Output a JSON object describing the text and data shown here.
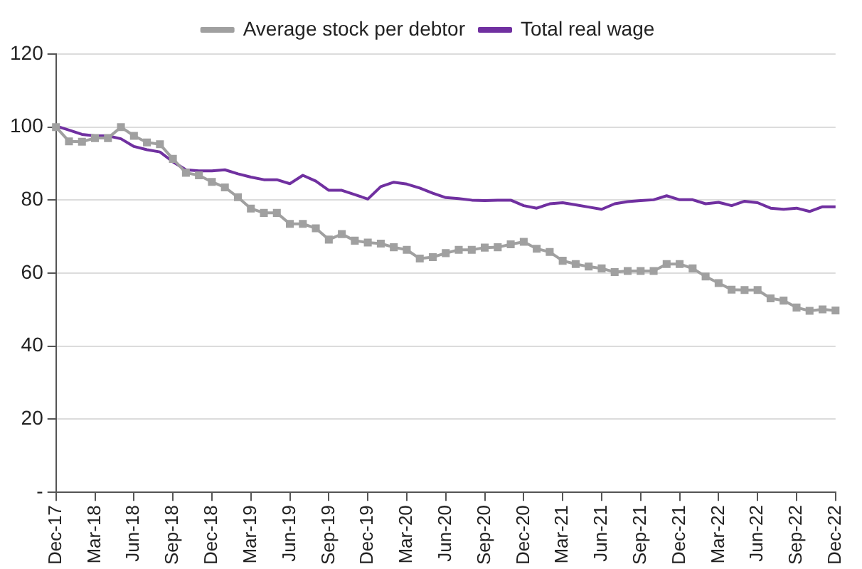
{
  "chart_data": {
    "type": "line",
    "categories": [
      "Dec-17",
      null,
      null,
      "Mar-18",
      null,
      null,
      "Jun-18",
      null,
      null,
      "Sep-18",
      null,
      null,
      "Dec-18",
      null,
      null,
      "Mar-19",
      null,
      null,
      "Jun-19",
      null,
      null,
      "Sep-19",
      null,
      null,
      "Dec-19",
      null,
      null,
      "Mar-20",
      null,
      null,
      "Jun-20",
      null,
      null,
      "Sep-20",
      null,
      null,
      "Dec-20",
      null,
      null,
      "Mar-21",
      null,
      null,
      "Jun-21",
      null,
      null,
      "Sep-21",
      null,
      null,
      "Dec-21",
      null,
      null,
      "Mar-22",
      null,
      null,
      "Jun-22",
      null,
      null,
      "Sep-22",
      null,
      null,
      "Dec-22"
    ],
    "series": [
      {
        "name": "Average stock per debtor",
        "color": "#a0a0a0",
        "marker": "square",
        "values": [
          100,
          96.1,
          96,
          97,
          97,
          100,
          97.6,
          95.8,
          95.3,
          91.3,
          87.5,
          86.8,
          85,
          83.5,
          80.8,
          77.7,
          76.5,
          76.5,
          73.5,
          73.5,
          72.3,
          69.2,
          70.7,
          68.9,
          68.4,
          68.1,
          67.1,
          66.4,
          64,
          64.4,
          65.5,
          66.4,
          66.4,
          67,
          67.1,
          67.9,
          68.6,
          66.7,
          65.8,
          63.4,
          62.5,
          61.8,
          61.3,
          60.3,
          60.6,
          60.6,
          60.6,
          62.5,
          62.5,
          61.3,
          59.1,
          57.3,
          55.5,
          55.4,
          55.4,
          53.1,
          52.5,
          50.6,
          49.7,
          50.1,
          49.8
        ]
      },
      {
        "name": "Total real wage",
        "color": "#7030a0",
        "marker": "none",
        "values": [
          100.3,
          99.2,
          98,
          97.6,
          97.6,
          96.8,
          94.7,
          93.8,
          93.2,
          90.5,
          88.3,
          88,
          88,
          88.3,
          87.2,
          86.3,
          85.6,
          85.6,
          84.5,
          86.8,
          85.2,
          82.7,
          82.7,
          81.5,
          80.3,
          83.7,
          84.9,
          84.4,
          83.3,
          81.9,
          80.7,
          80.4,
          80,
          79.9,
          80,
          80,
          78.5,
          77.8,
          79,
          79.3,
          78.7,
          78.1,
          77.5,
          79,
          79.6,
          79.9,
          80.1,
          81.2,
          80.1,
          80.1,
          79,
          79.4,
          78.5,
          79.7,
          79.3,
          77.8,
          77.5,
          77.8,
          76.9,
          78.2,
          78.2
        ]
      }
    ],
    "ylim": [
      0,
      120
    ],
    "yticks": [
      {
        "value": 0,
        "label": "-"
      },
      20,
      40,
      60,
      80,
      100,
      120
    ],
    "grid": "y",
    "legend": "top"
  }
}
